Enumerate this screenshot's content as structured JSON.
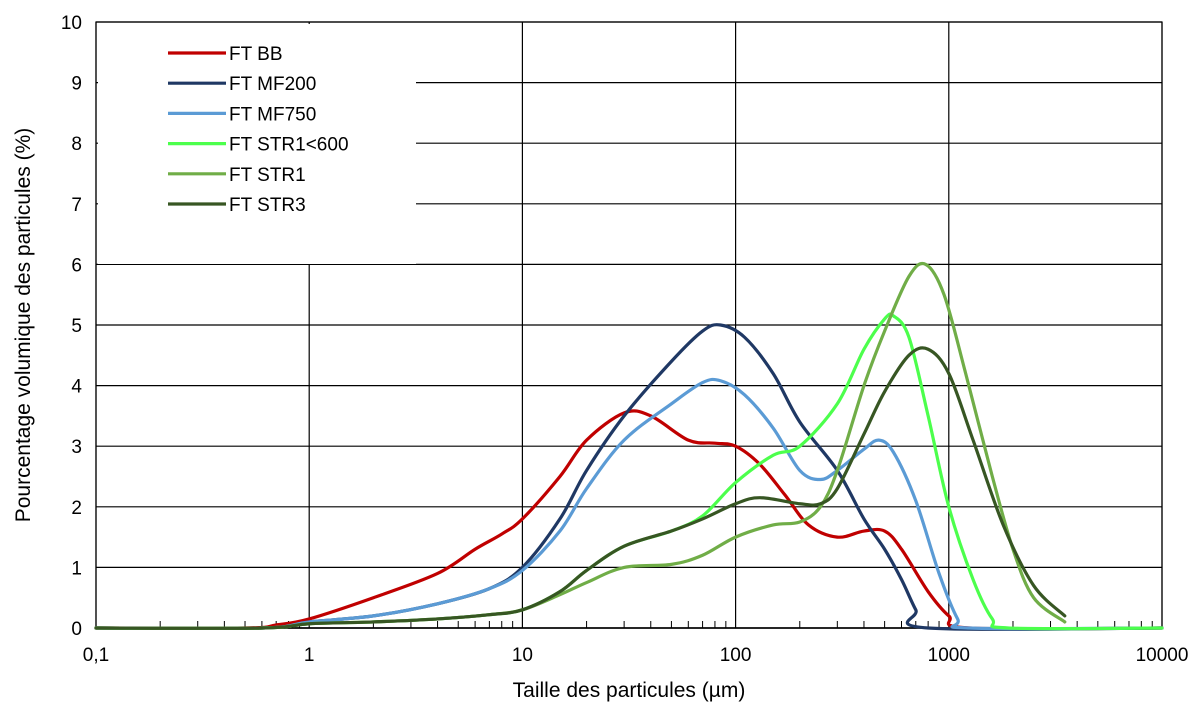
{
  "chart_data": {
    "type": "line",
    "title": "",
    "xlabel": "Taille des particules (µm)",
    "ylabel": "Pourcentage volumique des particules (%)",
    "x_scale": "log",
    "xlim": [
      0.1,
      10000
    ],
    "ylim": [
      0,
      10
    ],
    "x_ticks": [
      0.1,
      1,
      10,
      100,
      1000,
      10000
    ],
    "x_tick_labels": [
      "0,1",
      "1",
      "10",
      "100",
      "1000",
      "10000"
    ],
    "y_ticks": [
      0,
      1,
      2,
      3,
      4,
      5,
      6,
      7,
      8,
      9,
      10
    ],
    "y_tick_labels": [
      "0",
      "1",
      "2",
      "3",
      "4",
      "5",
      "6",
      "7",
      "8",
      "9",
      "10"
    ],
    "grid": true,
    "legend_position": "top-left",
    "series": [
      {
        "name": "FT BB",
        "color": "#c00000",
        "points": [
          [
            0.1,
            0
          ],
          [
            0.5,
            0
          ],
          [
            0.7,
            0.05
          ],
          [
            1,
            0.15
          ],
          [
            2,
            0.5
          ],
          [
            4,
            0.9
          ],
          [
            6,
            1.3
          ],
          [
            8,
            1.55
          ],
          [
            10,
            1.8
          ],
          [
            15,
            2.5
          ],
          [
            20,
            3.1
          ],
          [
            30,
            3.55
          ],
          [
            40,
            3.5
          ],
          [
            60,
            3.1
          ],
          [
            80,
            3.05
          ],
          [
            100,
            3.0
          ],
          [
            130,
            2.7
          ],
          [
            170,
            2.2
          ],
          [
            220,
            1.7
          ],
          [
            300,
            1.5
          ],
          [
            400,
            1.6
          ],
          [
            500,
            1.6
          ],
          [
            600,
            1.3
          ],
          [
            800,
            0.6
          ],
          [
            1000,
            0.2
          ],
          [
            1250,
            0
          ],
          [
            10000,
            0
          ]
        ]
      },
      {
        "name": "FT MF200",
        "color": "#1f3864",
        "points": [
          [
            0.1,
            0
          ],
          [
            0.6,
            0
          ],
          [
            1,
            0.1
          ],
          [
            2,
            0.2
          ],
          [
            4,
            0.4
          ],
          [
            7,
            0.65
          ],
          [
            10,
            1.0
          ],
          [
            15,
            1.8
          ],
          [
            20,
            2.6
          ],
          [
            30,
            3.5
          ],
          [
            50,
            4.4
          ],
          [
            70,
            4.9
          ],
          [
            85,
            5.0
          ],
          [
            110,
            4.8
          ],
          [
            150,
            4.2
          ],
          [
            200,
            3.4
          ],
          [
            300,
            2.6
          ],
          [
            400,
            1.8
          ],
          [
            500,
            1.3
          ],
          [
            600,
            0.8
          ],
          [
            700,
            0.3
          ],
          [
            800,
            0
          ],
          [
            10000,
            0
          ]
        ]
      },
      {
        "name": "FT MF750",
        "color": "#5b9bd5",
        "points": [
          [
            0.1,
            0
          ],
          [
            0.6,
            0
          ],
          [
            1,
            0.1
          ],
          [
            2,
            0.2
          ],
          [
            4,
            0.4
          ],
          [
            7,
            0.65
          ],
          [
            10,
            0.95
          ],
          [
            15,
            1.6
          ],
          [
            20,
            2.3
          ],
          [
            30,
            3.1
          ],
          [
            50,
            3.7
          ],
          [
            70,
            4.05
          ],
          [
            85,
            4.08
          ],
          [
            110,
            3.85
          ],
          [
            150,
            3.3
          ],
          [
            200,
            2.6
          ],
          [
            250,
            2.45
          ],
          [
            300,
            2.6
          ],
          [
            400,
            2.95
          ],
          [
            470,
            3.1
          ],
          [
            550,
            2.9
          ],
          [
            700,
            2.1
          ],
          [
            900,
            0.9
          ],
          [
            1100,
            0.15
          ],
          [
            1250,
            0
          ],
          [
            10000,
            0
          ]
        ]
      },
      {
        "name": "FT STR1<600",
        "color": "#4cff4c",
        "points": [
          [
            0.1,
            0
          ],
          [
            0.6,
            0
          ],
          [
            1,
            0.07
          ],
          [
            2,
            0.1
          ],
          [
            4,
            0.15
          ],
          [
            7,
            0.22
          ],
          [
            10,
            0.3
          ],
          [
            15,
            0.6
          ],
          [
            20,
            0.95
          ],
          [
            30,
            1.35
          ],
          [
            50,
            1.6
          ],
          [
            70,
            1.85
          ],
          [
            100,
            2.4
          ],
          [
            150,
            2.85
          ],
          [
            200,
            3.0
          ],
          [
            300,
            3.7
          ],
          [
            400,
            4.6
          ],
          [
            500,
            5.1
          ],
          [
            550,
            5.15
          ],
          [
            650,
            4.8
          ],
          [
            800,
            3.5
          ],
          [
            1000,
            2.0
          ],
          [
            1300,
            0.8
          ],
          [
            1600,
            0.15
          ],
          [
            1900,
            0
          ],
          [
            10000,
            0
          ]
        ]
      },
      {
        "name": "FT STR1",
        "color": "#70ad47",
        "points": [
          [
            0.1,
            0
          ],
          [
            0.6,
            0
          ],
          [
            1,
            0.07
          ],
          [
            2,
            0.1
          ],
          [
            4,
            0.15
          ],
          [
            7,
            0.22
          ],
          [
            10,
            0.3
          ],
          [
            15,
            0.55
          ],
          [
            20,
            0.75
          ],
          [
            30,
            1.0
          ],
          [
            50,
            1.05
          ],
          [
            70,
            1.2
          ],
          [
            100,
            1.5
          ],
          [
            150,
            1.7
          ],
          [
            200,
            1.75
          ],
          [
            250,
            2.0
          ],
          [
            300,
            2.6
          ],
          [
            400,
            4.0
          ],
          [
            500,
            4.9
          ],
          [
            650,
            5.8
          ],
          [
            780,
            6.0
          ],
          [
            950,
            5.5
          ],
          [
            1200,
            4.2
          ],
          [
            1600,
            2.5
          ],
          [
            2000,
            1.3
          ],
          [
            2500,
            0.5
          ],
          [
            3500,
            0.1
          ]
        ]
      },
      {
        "name": "FT STR3",
        "color": "#375623",
        "points": [
          [
            0.1,
            0
          ],
          [
            0.6,
            0
          ],
          [
            1,
            0.07
          ],
          [
            2,
            0.1
          ],
          [
            4,
            0.15
          ],
          [
            7,
            0.22
          ],
          [
            10,
            0.3
          ],
          [
            15,
            0.6
          ],
          [
            20,
            0.95
          ],
          [
            30,
            1.35
          ],
          [
            50,
            1.6
          ],
          [
            70,
            1.8
          ],
          [
            100,
            2.05
          ],
          [
            130,
            2.15
          ],
          [
            200,
            2.05
          ],
          [
            250,
            2.05
          ],
          [
            300,
            2.3
          ],
          [
            400,
            3.2
          ],
          [
            500,
            3.9
          ],
          [
            650,
            4.5
          ],
          [
            800,
            4.6
          ],
          [
            1000,
            4.2
          ],
          [
            1300,
            3.1
          ],
          [
            1800,
            1.7
          ],
          [
            2500,
            0.7
          ],
          [
            3500,
            0.2
          ]
        ]
      }
    ]
  }
}
